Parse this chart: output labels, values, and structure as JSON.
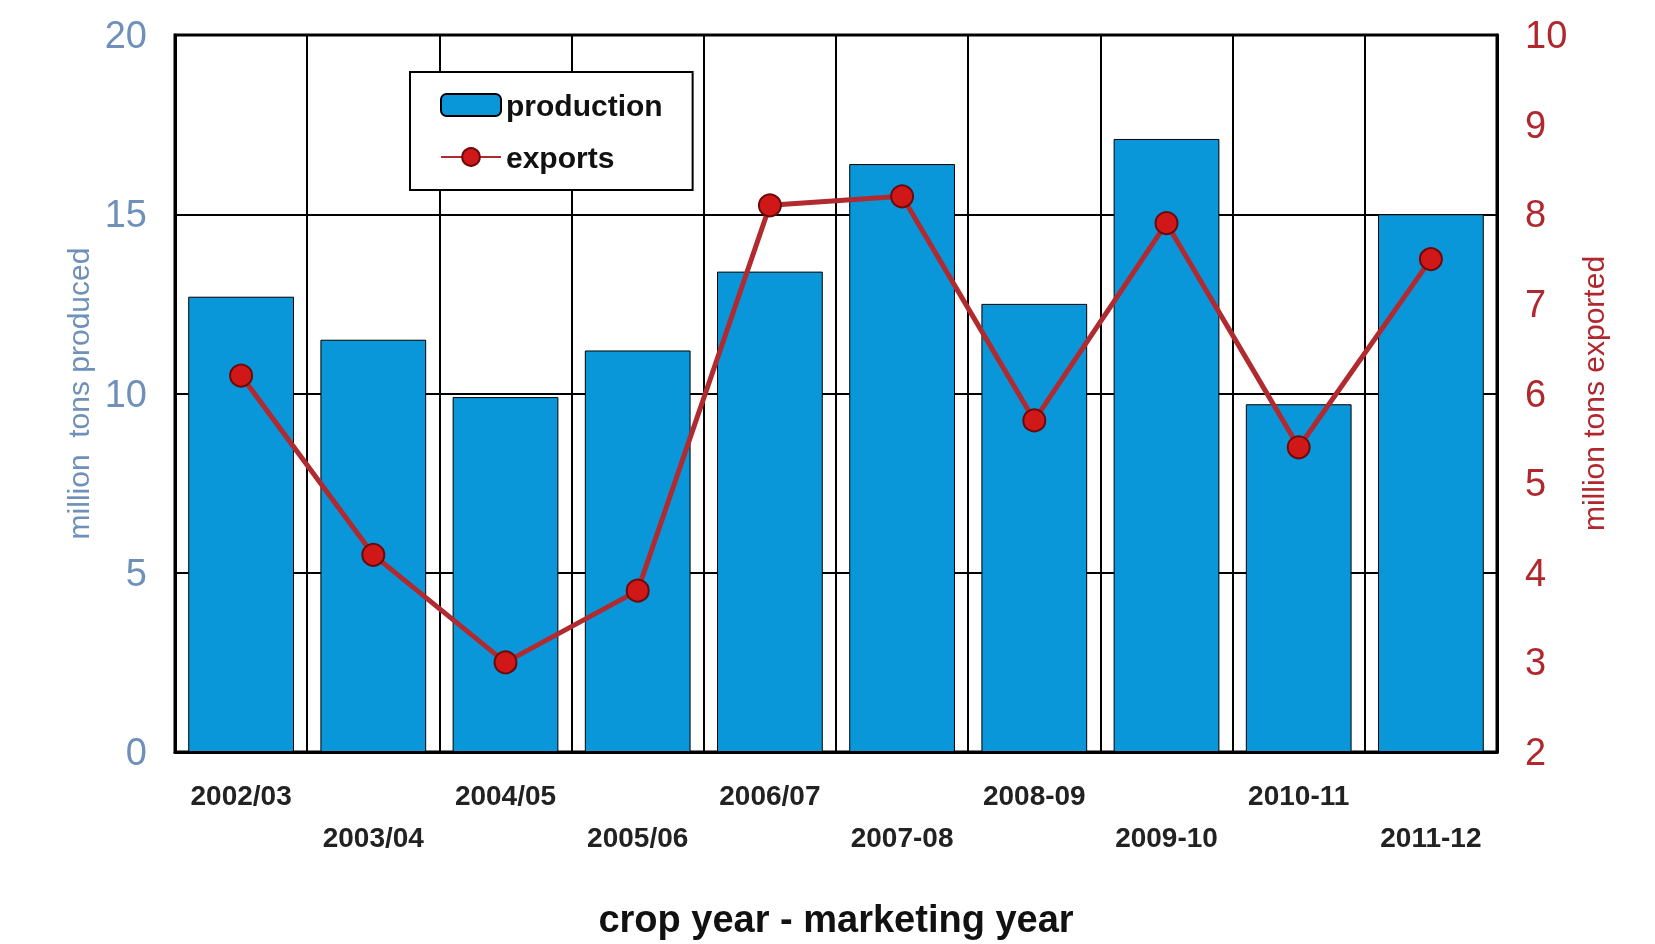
{
  "chart_data": {
    "type": "bar",
    "xlabel": "crop year - marketing year",
    "ylabel": "million  tons produced",
    "y2label": "million tons exported",
    "categories": [
      "2002/03",
      "2003/04",
      "2004/05",
      "2005/06",
      "2006/07",
      "2007-08",
      "2008-09",
      "2009-10",
      "2010-11",
      "2011-12"
    ],
    "series": [
      {
        "name": "production",
        "color": "#0a97d9",
        "values": [
          12.7,
          11.5,
          9.9,
          11.2,
          13.4,
          16.4,
          12.5,
          17.1,
          9.7,
          15.0
        ]
      },
      {
        "name": "exports",
        "type": "line",
        "axis": "y2",
        "color": "#b02a30",
        "values": [
          6.2,
          4.2,
          3.0,
          3.8,
          8.1,
          8.2,
          5.7,
          7.9,
          5.4,
          7.5
        ]
      }
    ],
    "ylim": [
      0,
      20
    ],
    "yticks": [
      0,
      5,
      10,
      15,
      20
    ],
    "y2lim": [
      2,
      10
    ],
    "y2ticks": [
      2,
      3,
      4,
      5,
      6,
      7,
      8,
      9,
      10
    ],
    "grid": true,
    "legend": "top left",
    "marker": "circle"
  }
}
